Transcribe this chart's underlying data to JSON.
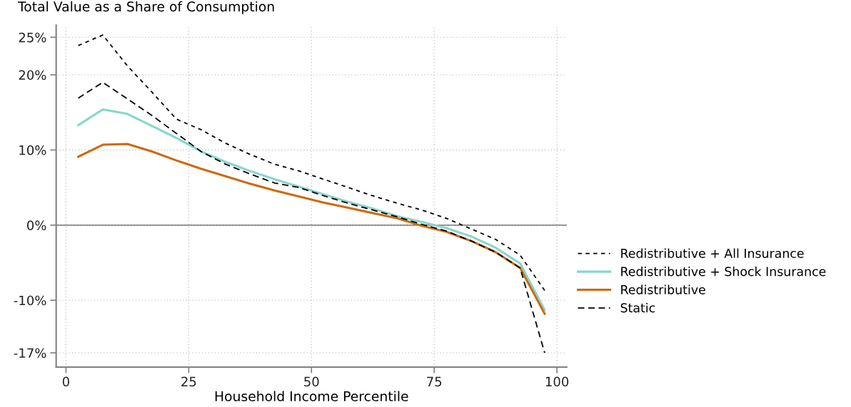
{
  "chart_data": {
    "type": "line",
    "title": "Total Value as a Share of Consumption",
    "xlabel": "Household Income Percentile",
    "x": [
      2.5,
      7.5,
      12.5,
      17.5,
      22.5,
      27.5,
      32.5,
      37.5,
      42.5,
      47.5,
      52.5,
      57.5,
      62.5,
      67.5,
      72.5,
      77.5,
      82.5,
      87.5,
      92.5,
      97.5
    ],
    "series": [
      {
        "name": "Redistributive + All Insurance",
        "color": "#000000",
        "line_style": "dotted",
        "values": [
          23.9,
          25.3,
          21.2,
          17.7,
          14.1,
          12.7,
          10.9,
          9.4,
          8.1,
          7.2,
          6.1,
          5.0,
          3.9,
          2.9,
          2.0,
          0.9,
          -0.5,
          -1.9,
          -4.0,
          -8.7
        ]
      },
      {
        "name": "Redistributive + Shock Insurance",
        "color": "#86d6ce",
        "line_style": "solid",
        "values": [
          13.3,
          15.4,
          14.8,
          13.2,
          11.6,
          9.8,
          8.4,
          7.2,
          6.1,
          5.1,
          4.1,
          3.1,
          2.2,
          1.2,
          0.4,
          -0.4,
          -1.5,
          -3.0,
          -5.1,
          -11.3
        ]
      },
      {
        "name": "Redistributive",
        "color": "#cc6a10",
        "line_style": "solid",
        "values": [
          9.1,
          10.7,
          10.8,
          9.8,
          8.6,
          7.5,
          6.5,
          5.5,
          4.6,
          3.8,
          3.0,
          2.3,
          1.6,
          0.9,
          -0.1,
          -0.9,
          -2.1,
          -3.6,
          -5.7,
          -11.8
        ]
      },
      {
        "name": "Static",
        "color": "#000000",
        "line_style": "dashed",
        "values": [
          16.9,
          19.0,
          16.8,
          14.6,
          12.2,
          9.8,
          8.1,
          6.8,
          5.6,
          5.0,
          3.9,
          2.9,
          2.0,
          1.1,
          0.1,
          -0.8,
          -2.1,
          -3.6,
          -5.7,
          -17.0
        ]
      }
    ],
    "xlim": [
      -2,
      102
    ],
    "xticks": [
      0,
      25,
      50,
      75,
      100
    ],
    "ylim": [
      -18.9,
      26.6
    ],
    "yticks": [
      {
        "value": 25,
        "label": "25%"
      },
      {
        "value": 20,
        "label": "20%"
      },
      {
        "value": 10,
        "label": "10%"
      },
      {
        "value": 0,
        "label": "0%"
      },
      {
        "value": -10,
        "label": "-10%"
      },
      {
        "value": -17,
        "label": "-17%"
      }
    ],
    "ref_lines": [
      {
        "axis": "y",
        "value": 0,
        "label": null,
        "color": "#808080",
        "line_style": "solid"
      }
    ],
    "grid": true,
    "legend": "right",
    "marker": "none"
  }
}
